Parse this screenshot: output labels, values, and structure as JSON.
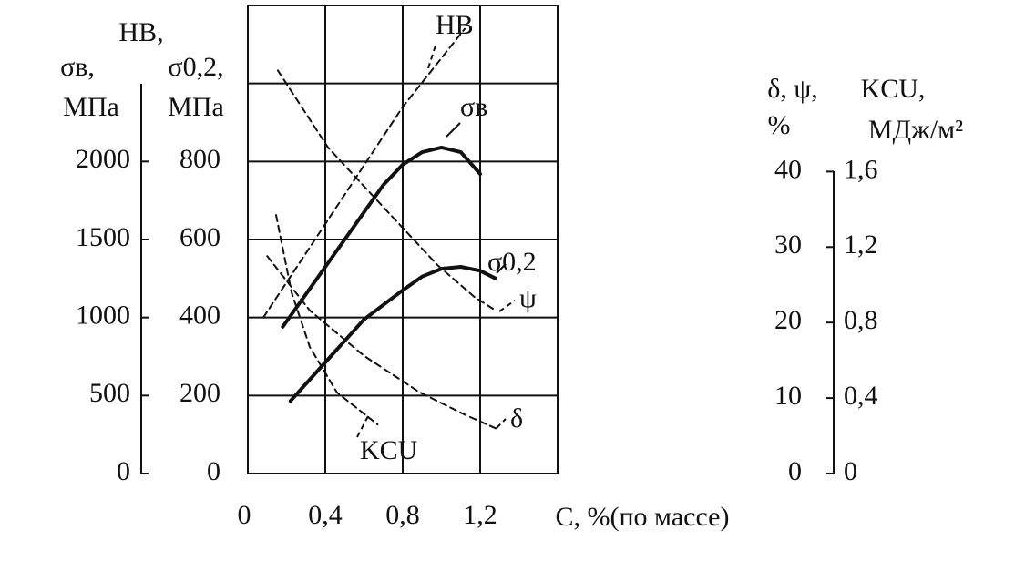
{
  "chart_data": {
    "type": "line",
    "xlim": [
      0,
      1.6
    ],
    "xticks": [
      0,
      {
        "value": 0.4,
        "label": "0,4"
      },
      {
        "value": 0.8,
        "label": "0,8"
      },
      {
        "value": 1.2,
        "label": "1,2"
      }
    ],
    "x_label": "C, %(по массе)",
    "ylim": [
      0,
      1200
    ],
    "yticks": [
      0,
      200,
      400,
      600,
      800
    ],
    "ygrid": [
      200,
      400,
      600,
      800,
      1000
    ],
    "y_label": [
      "σ0,2,",
      "МПа"
    ],
    "y2lim": [
      0,
      3000
    ],
    "y2ticks": [
      0,
      500,
      1000,
      1500,
      2000
    ],
    "y2_label": [
      "HB,",
      "σв,",
      "МПа"
    ],
    "y3lim": [
      0,
      62
    ],
    "y3ticks": [
      0,
      10,
      20,
      30,
      40
    ],
    "y3_label": [
      "δ, ψ,",
      "%"
    ],
    "y4lim": [
      0,
      2.48
    ],
    "y4ticks": [
      0,
      {
        "value": 0.4,
        "label": "0,4"
      },
      {
        "value": 0.8,
        "label": "0,8"
      },
      {
        "value": 1.2,
        "label": "1,2"
      },
      {
        "value": 1.6,
        "label": "1,6"
      }
    ],
    "y4_label": [
      "KCU,",
      "МДж/м²"
    ],
    "grid": true,
    "series": [
      {
        "name": "σв",
        "axis": "y2",
        "dashed": false,
        "color": "#111111",
        "x": [
          0.18,
          0.3,
          0.5,
          0.7,
          0.8,
          0.9,
          1.0,
          1.1,
          1.2
        ],
        "values": [
          940,
          1150,
          1500,
          1850,
          1980,
          2060,
          2090,
          2060,
          1920
        ]
      },
      {
        "name": "σ0,2",
        "axis": "y",
        "dashed": false,
        "color": "#111111",
        "x": [
          0.22,
          0.4,
          0.6,
          0.8,
          0.9,
          1.0,
          1.1,
          1.2,
          1.28
        ],
        "values": [
          186,
          285,
          395,
          470,
          505,
          525,
          530,
          520,
          500
        ]
      },
      {
        "name": "HB",
        "axis": "y2",
        "dashed": true,
        "color": "#111111",
        "x": [
          0.08,
          0.4,
          0.8,
          1.12
        ],
        "values": [
          1000,
          1600,
          2350,
          2850
        ]
      },
      {
        "name": "ψ",
        "axis": "y3",
        "dashed": true,
        "color": "#111111",
        "x": [
          0.155,
          0.414,
          0.696,
          0.98,
          1.17,
          1.28
        ],
        "values": [
          53.4,
          43.2,
          35.4,
          27.6,
          23.4,
          21.6
        ]
      },
      {
        "name": "δ",
        "axis": "y3",
        "dashed": true,
        "color": "#111111",
        "x": [
          0.1,
          0.32,
          0.6,
          0.885,
          1.12,
          1.28
        ],
        "values": [
          28.8,
          21.6,
          15.6,
          10.8,
          7.8,
          6.0
        ]
      },
      {
        "name": "KCU",
        "axis": "y4",
        "dashed": true,
        "color": "#111111",
        "x": [
          0.146,
          0.226,
          0.32,
          0.46,
          0.67
        ],
        "values": [
          1.37,
          0.96,
          0.67,
          0.43,
          0.26
        ]
      }
    ]
  }
}
